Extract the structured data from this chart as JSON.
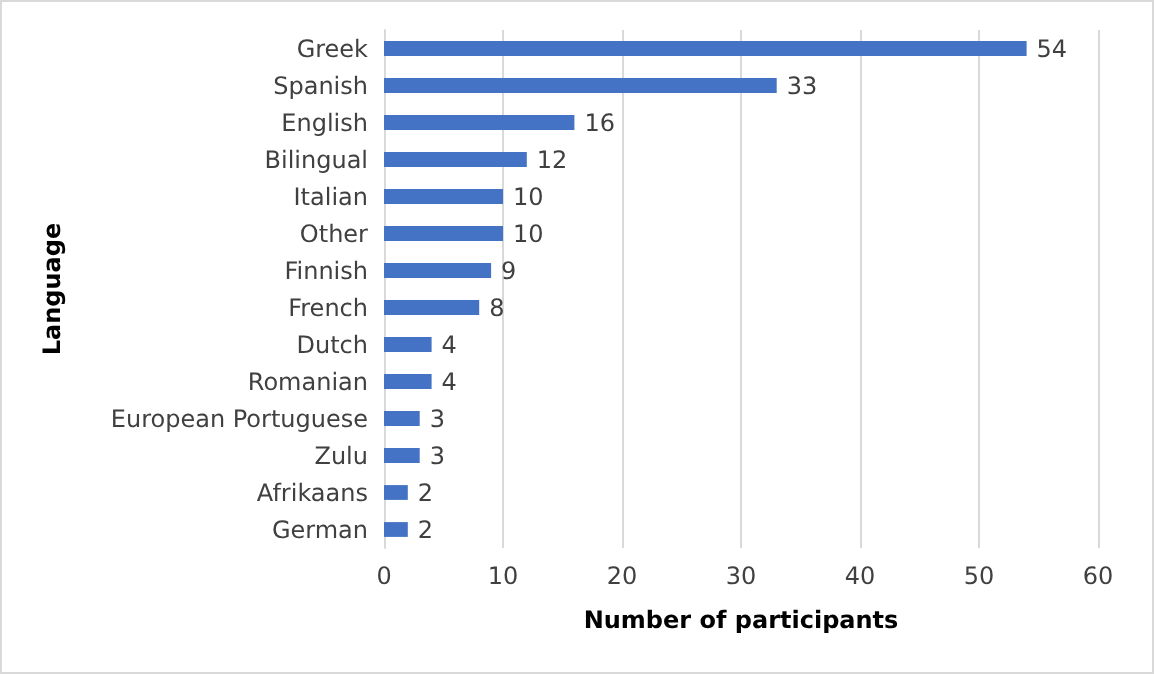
{
  "chart_data": {
    "type": "bar",
    "orientation": "horizontal",
    "xlabel": "Number of participants",
    "ylabel": "Language",
    "categories": [
      "Greek",
      "Spanish",
      "English",
      "Bilingual",
      "Italian",
      "Other",
      "Finnish",
      "French",
      "Dutch",
      "Romanian",
      "European Portuguese",
      "Zulu",
      "Afrikaans",
      "German"
    ],
    "values": [
      54,
      33,
      16,
      12,
      10,
      10,
      9,
      8,
      4,
      4,
      3,
      3,
      2,
      2
    ],
    "color": "#4472c4",
    "xlim": [
      0,
      60
    ],
    "xticks": [
      0,
      10,
      20,
      30,
      40,
      50,
      60
    ],
    "grid": "x",
    "data_labels": true
  }
}
